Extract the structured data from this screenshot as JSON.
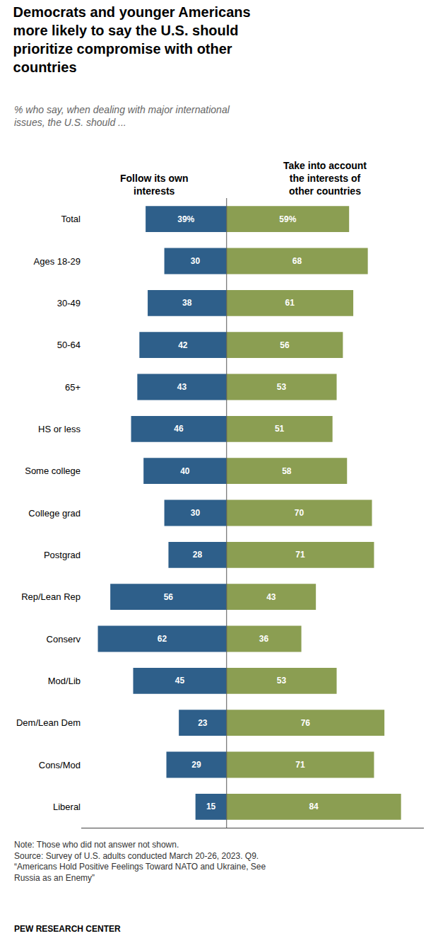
{
  "chart_data": {
    "type": "bar",
    "orientation": "horizontal",
    "title": "Democrats and younger Americans\nmore likely to say the U.S. should\nprioritize compromise with other\ncountries",
    "subtitle": "% who say, when dealing with major international\nissues, the U.S. should ...",
    "annotations": [
      "Note: Those who did not answer not shown.\nSource: Survey of U.S. adults conducted March 20-26, 2023. Q9.\n“Americans Hold Positive Feelings Toward NATO and Ukraine, See\nRussia as an Enemy”",
      "PEW RESEARCH CENTER"
    ],
    "categories": [
      "Total",
      "Ages 18-29",
      "30-49",
      "50-64",
      "65+",
      "HS or less",
      "Some college",
      "College grad",
      "Postgrad",
      "Rep/Lean Rep",
      "Conserv",
      "Mod/Lib",
      "Dem/Lean Dem",
      "Cons/Mod",
      "Liberal"
    ],
    "series": [
      {
        "name": "Follow its own\ninterests",
        "color": "#2E5F8A",
        "values": [
          39,
          30,
          38,
          42,
          43,
          46,
          40,
          30,
          28,
          56,
          62,
          45,
          23,
          29,
          15
        ],
        "value_labels": [
          "39%",
          "30",
          "38",
          "42",
          "43",
          "46",
          "40",
          "30",
          "28",
          "56",
          "62",
          "45",
          "23",
          "29",
          "15"
        ]
      },
      {
        "name": "Take into account\nthe interests of\nother countries",
        "color": "#8B9E52",
        "values": [
          59,
          68,
          61,
          56,
          53,
          51,
          58,
          70,
          71,
          43,
          36,
          53,
          76,
          71,
          84
        ],
        "value_labels": [
          "59%",
          "68",
          "61",
          "56",
          "53",
          "51",
          "58",
          "70",
          "71",
          "43",
          "36",
          "53",
          "76",
          "71",
          "84"
        ]
      }
    ],
    "xlim": [
      -70,
      95
    ],
    "data_labels": true,
    "tick_labels": "y",
    "grid": false
  }
}
